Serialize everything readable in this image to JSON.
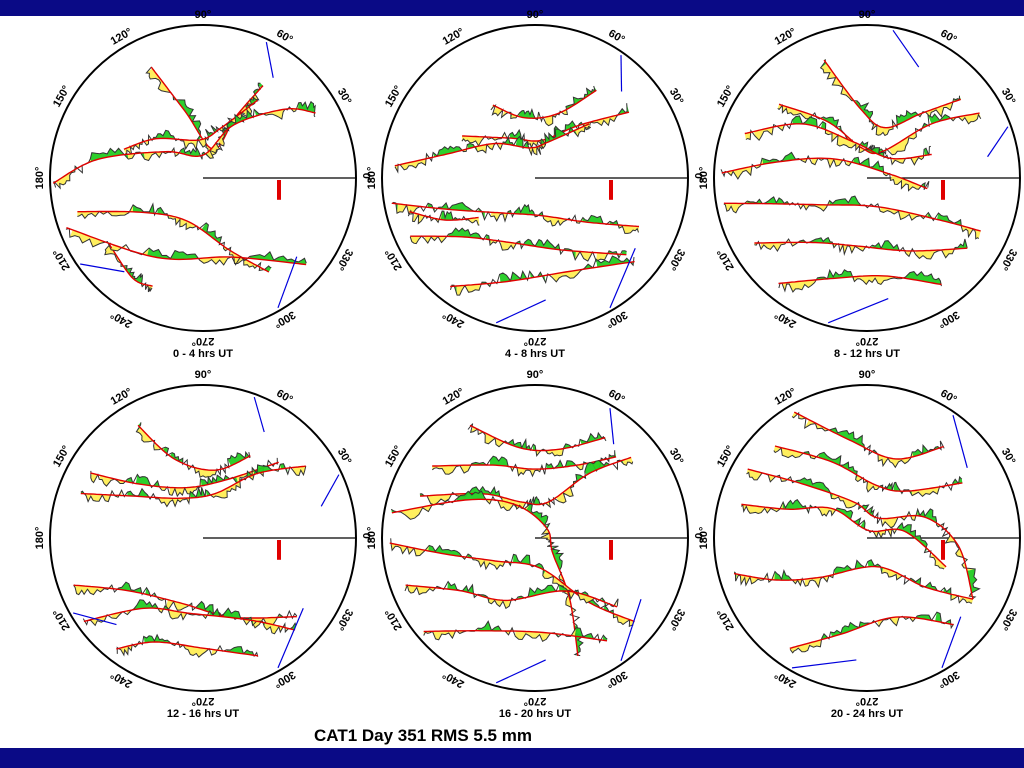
{
  "title": "CAT1 Day 351 RMS 5.5 mm",
  "colors": {
    "frame": "#0a0a86",
    "track": "#e00000",
    "positive_residual": "#ffee55",
    "negative_residual": "#22cc22",
    "residual_line": "#333333",
    "low_elevation": "#0000dd",
    "scale_bar": "#e00000"
  },
  "chart_data": [
    {
      "type": "polar",
      "label": "0 - 4 hrs UT",
      "ticks": [
        "90°",
        "60°",
        "30°",
        "0°",
        "330°",
        "300°",
        "270°",
        "240°",
        "210°",
        "180°",
        "150°",
        "120°"
      ],
      "scale_bar_mm": 5.5
    },
    {
      "type": "polar",
      "label": "4 - 8 hrs UT",
      "ticks": [
        "90°",
        "60°",
        "30°",
        "0°",
        "330°",
        "300°",
        "270°",
        "240°",
        "210°",
        "180°",
        "150°",
        "120°"
      ],
      "scale_bar_mm": 5.5
    },
    {
      "type": "polar",
      "label": "8 - 12 hrs UT",
      "ticks": [
        "90°",
        "60°",
        "30°",
        "0°",
        "330°",
        "300°",
        "270°",
        "240°",
        "210°",
        "180°",
        "150°",
        "120°"
      ],
      "scale_bar_mm": 5.5
    },
    {
      "type": "polar",
      "label": "12 - 16 hrs UT",
      "ticks": [
        "90°",
        "60°",
        "30°",
        "0°",
        "330°",
        "300°",
        "270°",
        "240°",
        "210°",
        "180°",
        "150°",
        "120°"
      ],
      "scale_bar_mm": 5.5
    },
    {
      "type": "polar",
      "label": "16 - 20 hrs UT",
      "ticks": [
        "90°",
        "60°",
        "30°",
        "0°",
        "330°",
        "300°",
        "270°",
        "240°",
        "210°",
        "180°",
        "150°",
        "120°"
      ],
      "scale_bar_mm": 5.5
    },
    {
      "type": "polar",
      "label": "20 - 24 hrs UT",
      "ticks": [
        "90°",
        "60°",
        "30°",
        "0°",
        "330°",
        "300°",
        "270°",
        "240°",
        "210°",
        "180°",
        "150°",
        "120°"
      ],
      "scale_bar_mm": 5.5
    }
  ]
}
